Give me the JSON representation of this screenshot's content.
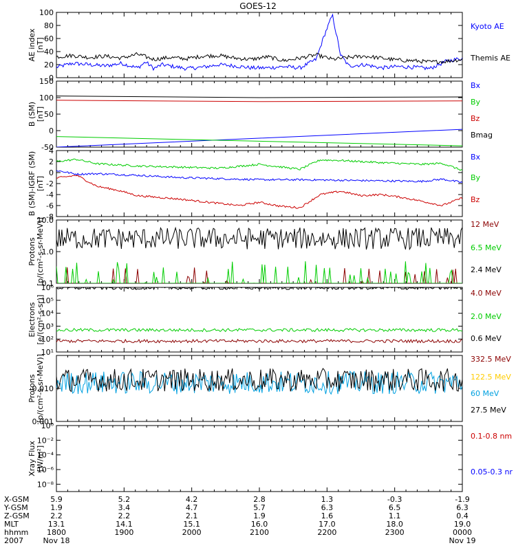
{
  "title": "GOES-12",
  "colors": {
    "black": "#000000",
    "blue": "#0000ff",
    "red": "#cc0000",
    "green": "#00cc00",
    "darkred": "#8b0000",
    "yellow": "#ffcc00",
    "cyan": "#00a0e0"
  },
  "chart_data": [
    {
      "type": "line",
      "ylabel": "AE index\n[nT]",
      "ylim": [
        0,
        100
      ],
      "yscale": "linear",
      "yticks": [
        "0",
        "20",
        "40",
        "60",
        "80",
        "100"
      ],
      "series": [
        {
          "name": "Kyoto AE",
          "color": "blue",
          "x": [
            0,
            4,
            8,
            12,
            16,
            20,
            22,
            24,
            26,
            28,
            32,
            36,
            40,
            44,
            48,
            52,
            56,
            60,
            64,
            66,
            68,
            70,
            72,
            76,
            80,
            84,
            88,
            92,
            96,
            100
          ],
          "y": [
            16,
            22,
            20,
            18,
            22,
            15,
            24,
            14,
            20,
            18,
            14,
            16,
            20,
            18,
            15,
            15,
            17,
            15,
            28,
            65,
            96,
            35,
            18,
            20,
            15,
            17,
            16,
            14,
            25,
            30
          ]
        },
        {
          "name": "Themis AE",
          "color": "black",
          "x": [
            0,
            4,
            8,
            12,
            16,
            20,
            24,
            28,
            32,
            36,
            40,
            44,
            48,
            52,
            56,
            60,
            64,
            68,
            72,
            76,
            80,
            84,
            88,
            92,
            96,
            100
          ],
          "y": [
            32,
            34,
            31,
            33,
            30,
            36,
            28,
            31,
            29,
            33,
            34,
            30,
            28,
            32,
            26,
            30,
            35,
            28,
            31,
            33,
            30,
            27,
            26,
            24,
            25,
            28
          ]
        }
      ]
    },
    {
      "type": "line",
      "ylabel": "B (SM)\n[nT]",
      "ylim": [
        -50,
        150
      ],
      "yscale": "linear",
      "yticks": [
        "-50",
        "0",
        "50",
        "100",
        "150"
      ],
      "series": [
        {
          "name": "Bx",
          "color": "blue",
          "x": [
            0,
            100
          ],
          "y": [
            -50,
            4
          ]
        },
        {
          "name": "By",
          "color": "green",
          "x": [
            0,
            100
          ],
          "y": [
            -18,
            -46
          ]
        },
        {
          "name": "Bz",
          "color": "red",
          "x": [
            0,
            25,
            50,
            75,
            100
          ],
          "y": [
            92,
            90,
            88,
            89,
            90
          ]
        },
        {
          "name": "Bmag",
          "color": "black",
          "x": [
            0,
            25,
            50,
            75,
            100
          ],
          "y": [
            105,
            102,
            100,
            101,
            102
          ]
        }
      ]
    },
    {
      "type": "line",
      "ylabel": "B (SM)-IGRF (SM)\n[nT]",
      "ylim": [
        -8,
        4
      ],
      "yscale": "linear",
      "yticks": [
        "-8",
        "-6",
        "-4",
        "-2",
        "0",
        "2",
        "4"
      ],
      "series": [
        {
          "name": "Bx",
          "color": "blue",
          "x": [
            0,
            5,
            10,
            20,
            30,
            40,
            50,
            60,
            70,
            80,
            90,
            95,
            100
          ],
          "y": [
            0.4,
            -0.3,
            -0.2,
            -0.5,
            -0.9,
            -1.1,
            -1.3,
            -1.3,
            -1.4,
            -1.5,
            -1.6,
            -1.2,
            -1.8
          ]
        },
        {
          "name": "By",
          "color": "green",
          "x": [
            0,
            5,
            10,
            20,
            30,
            40,
            50,
            60,
            65,
            70,
            80,
            90,
            95,
            100
          ],
          "y": [
            2.0,
            2.4,
            1.6,
            1.2,
            1.0,
            0.8,
            1.5,
            0.6,
            2.3,
            2.2,
            1.8,
            1.5,
            1.7,
            0.4
          ]
        },
        {
          "name": "Bz",
          "color": "red",
          "x": [
            0,
            5,
            10,
            15,
            20,
            30,
            40,
            45,
            50,
            55,
            60,
            65,
            70,
            75,
            80,
            85,
            90,
            95,
            100
          ],
          "y": [
            -1.0,
            -0.5,
            -2.5,
            -3.2,
            -4.2,
            -4.8,
            -5.6,
            -6.0,
            -5.4,
            -6.1,
            -6.4,
            -4.0,
            -3.4,
            -4.2,
            -4.0,
            -4.5,
            -5.2,
            -6.0,
            -4.6
          ]
        }
      ]
    },
    {
      "type": "line",
      "ylabel": "Protons\n[p/(cm²-s-sr-MeV)]",
      "ylim": [
        0.1,
        10.0
      ],
      "yscale": "log",
      "yticks": [
        "0.1",
        "1.0",
        "10.0"
      ],
      "series": [
        {
          "name": "12 MeV",
          "color": "darkred",
          "baseline": 0.1,
          "peak": 0.25
        },
        {
          "name": "6.5 MeV",
          "color": "green",
          "baseline": 0.1,
          "peak": 0.35
        },
        {
          "name": "2.4 MeV",
          "color": "black",
          "baseline": 2.6,
          "peak": 6.0
        }
      ]
    },
    {
      "type": "line",
      "ylabel": "Electrons\n[e/(cm²-s-sr)]",
      "ylim": [
        10,
        1000000
      ],
      "yscale": "log",
      "yticks": [
        "10¹",
        "10²",
        "10³",
        "10⁴",
        "10⁵",
        "10⁶"
      ],
      "series": [
        {
          "name": "4.0 MeV",
          "color": "darkred",
          "baseline": 70,
          "peak": 110
        },
        {
          "name": "2.0 MeV",
          "color": "green",
          "baseline": 500,
          "peak": 550
        },
        {
          "name": "0.6 MeV",
          "color": "black",
          "baseline": 900000,
          "peak": 950000
        }
      ]
    },
    {
      "type": "line",
      "ylabel": "Protons\n[p/(cm²-s-sr-MeV)]",
      "ylim": [
        0.001,
        0.1
      ],
      "yscale": "log",
      "yticks": [
        "0.001",
        "0.010"
      ],
      "series": [
        {
          "name": "332.5 MeV",
          "color": "darkred"
        },
        {
          "name": "122.5 MeV",
          "color": "yellow"
        },
        {
          "name": "60 MeV",
          "color": "cyan",
          "baseline": 0.015,
          "peak": 0.03
        },
        {
          "name": "27.5 MeV",
          "color": "black",
          "baseline": 0.018,
          "peak": 0.06
        }
      ]
    },
    {
      "type": "line",
      "ylabel": "Xray Flux\n[W/m²]",
      "ylim": [
        1e-09,
        1
      ],
      "yscale": "log",
      "yticks": [
        "10⁰",
        "10⁻²",
        "10⁻⁴",
        "10⁻⁶",
        "10⁻⁸"
      ],
      "series": [
        {
          "name": "0.1-0.8 nm",
          "color": "red"
        },
        {
          "name": "0.05-0.3 nr",
          "color": "blue"
        }
      ]
    }
  ],
  "xaxis": {
    "rows": [
      {
        "label": "X-GSM",
        "values": [
          "5.9",
          "5.2",
          "4.2",
          "2.8",
          "1.3",
          "-0.3",
          "-1.9"
        ]
      },
      {
        "label": "Y-GSM",
        "values": [
          "1.9",
          "3.4",
          "4.7",
          "5.7",
          "6.3",
          "6.5",
          "6.3"
        ]
      },
      {
        "label": "Z-GSM",
        "values": [
          "2.2",
          "2.2",
          "2.1",
          "1.9",
          "1.6",
          "1.1",
          "0.4"
        ]
      },
      {
        "label": "MLT",
        "values": [
          "13.1",
          "14.1",
          "15.1",
          "16.0",
          "17.0",
          "18.0",
          "19.0"
        ]
      },
      {
        "label": "hhmm",
        "values": [
          "1800",
          "1900",
          "2000",
          "2100",
          "2200",
          "2300",
          "0000"
        ]
      },
      {
        "label": "2007",
        "values": [
          "Nov 18",
          "",
          "",
          "",
          "",
          "",
          "Nov 19"
        ]
      }
    ]
  }
}
